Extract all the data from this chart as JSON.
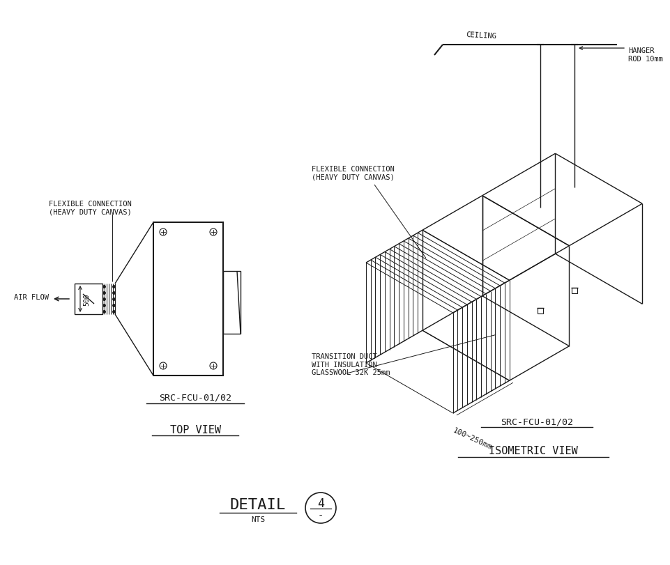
{
  "bg_color": "#ffffff",
  "line_color": "#1a1a1a",
  "top_view_label": "TOP VIEW",
  "iso_view_label": "ISOMETRIC VIEW",
  "src_label": "SRC-FCU-01/02",
  "detail_label": "DETAIL",
  "nts_label": "NTS",
  "detail_number": "4",
  "flex_conn_label_top": "FLEXIBLE CONNECTION\n(HEAVY DUTY CANVAS)",
  "flex_conn_label_iso": "FLEXIBLE CONNECTION\n(HEAVY DUTY CANVAS)",
  "air_flow_label": "AIR FLOW",
  "dim_500": "500",
  "dim_range": "100~250mm",
  "transition_label": "TRANSITION DUCT\nWITH INSULATION\nGLASSWOOL 32K 25mm",
  "ceiling_label": "CEILING",
  "hanger_label": "HANGER\nROD 10mm"
}
